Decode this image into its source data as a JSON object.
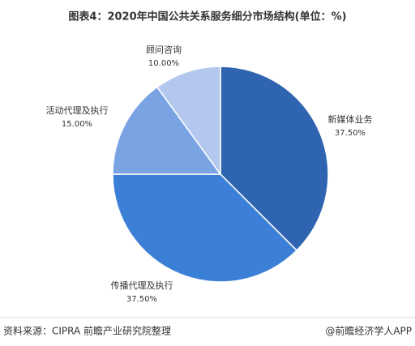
{
  "chart_data": {
    "type": "pie",
    "title": "图表4：2020年中国公共关系服务细分市场结构(单位：%)",
    "categories": [
      "新媒体业务",
      "传播代理及执行",
      "活动代理及执行",
      "顾问咨询"
    ],
    "values": [
      37.5,
      37.5,
      15,
      10
    ],
    "value_labels": [
      "37.50%",
      "37.50%",
      "15.00%",
      "10.00%"
    ],
    "colors": [
      "#2f65b0",
      "#3c7fd6",
      "#7aa3e4",
      "#b4c7ee"
    ]
  },
  "footer": {
    "source": "资料来源：CIPRA 前瞻产业研究院整理",
    "brand": "@前瞻经济学人APP"
  }
}
